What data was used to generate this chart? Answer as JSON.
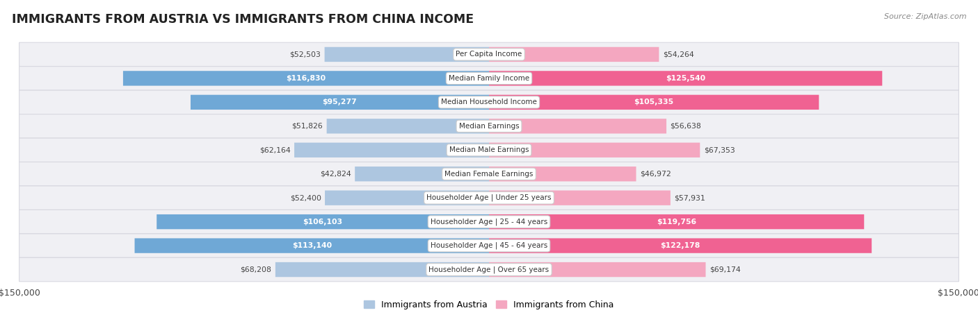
{
  "title": "IMMIGRANTS FROM AUSTRIA VS IMMIGRANTS FROM CHINA INCOME",
  "source": "Source: ZipAtlas.com",
  "max_val": 150000,
  "categories": [
    "Per Capita Income",
    "Median Family Income",
    "Median Household Income",
    "Median Earnings",
    "Median Male Earnings",
    "Median Female Earnings",
    "Householder Age | Under 25 years",
    "Householder Age | 25 - 44 years",
    "Householder Age | 45 - 64 years",
    "Householder Age | Over 65 years"
  ],
  "austria_values": [
    52503,
    116830,
    95277,
    51826,
    62164,
    42824,
    52400,
    106103,
    113140,
    68208
  ],
  "china_values": [
    54264,
    125540,
    105335,
    56638,
    67353,
    46972,
    57931,
    119756,
    122178,
    69174
  ],
  "austria_color_dark": "#6fa8d6",
  "austria_color_light": "#adc6e0",
  "china_color_dark": "#f06292",
  "china_color_light": "#f4a7c0",
  "inside_threshold": 80000,
  "legend_austria": "Immigrants from Austria",
  "legend_china": "Immigrants from China",
  "background_color": "#ffffff",
  "row_bg": "#f0f0f0",
  "row_border": "#d0d0d0",
  "label_outside_color": "#444444",
  "label_inside_color": "#ffffff",
  "center_label_color": "#333333",
  "title_color": "#222222",
  "source_color": "#888888",
  "tick_color": "#444444"
}
